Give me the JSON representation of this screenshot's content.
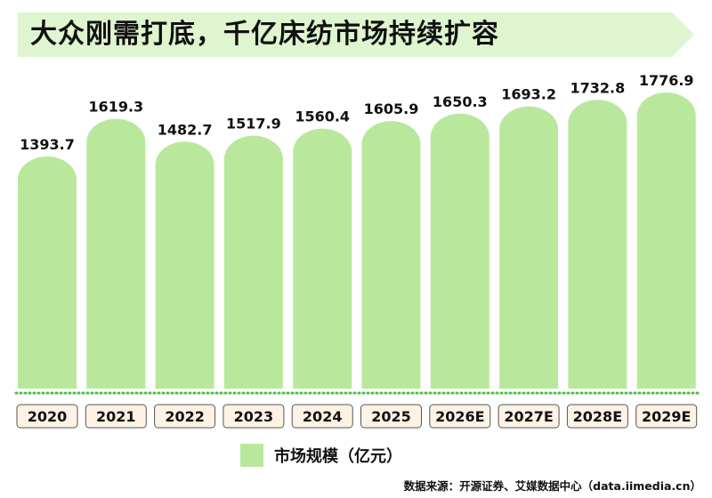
{
  "title": "大众刚需打底，千亿床纺市场持续扩容",
  "colors": {
    "banner": "#dff5cf",
    "bar": "#b9e89c",
    "label_box_fill": "#fdf2e4",
    "label_box_stroke": "#555555",
    "baseline_dots": "#4bbf43"
  },
  "legend": {
    "label": "市场规模（亿元）"
  },
  "source": "数据来源：开源证券、艾媒数据中心（data.iimedia.cn）",
  "chart_data": {
    "type": "bar",
    "categories": [
      "2020",
      "2021",
      "2022",
      "2023",
      "2024",
      "2025",
      "2026E",
      "2027E",
      "2028E",
      "2029E"
    ],
    "series": [
      {
        "name": "市场规模（亿元）",
        "values": [
          1393.7,
          1619.3,
          1482.7,
          1517.9,
          1560.4,
          1605.9,
          1650.3,
          1693.2,
          1732.8,
          1776.9
        ]
      }
    ],
    "data_labels": [
      "1393.7",
      "1619.3",
      "1482.7",
      "1517.9",
      "1560.4",
      "1605.9",
      "1650.3",
      "1693.2",
      "1732.8",
      "1776.9"
    ],
    "legend_position": "bottom",
    "grid": false
  }
}
